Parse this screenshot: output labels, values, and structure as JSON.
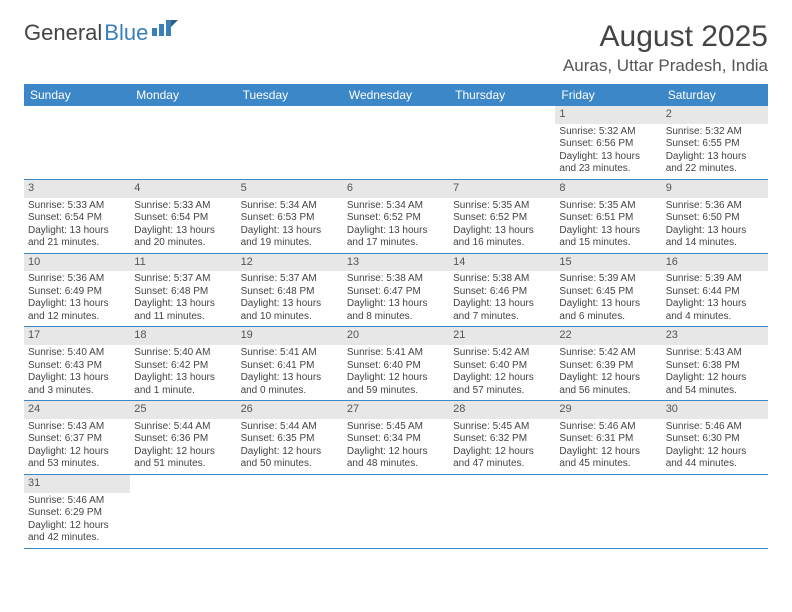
{
  "logo": {
    "text1": "General",
    "text2": "Blue"
  },
  "title": {
    "month": "August 2025",
    "location": "Auras, Uttar Pradesh, India"
  },
  "colors": {
    "header_bg": "#3b87c8",
    "header_text": "#ffffff",
    "daynum_bg": "#e7e7e7",
    "row_border": "#3b87c8",
    "text": "#444444",
    "logo_blue": "#3b7fb8"
  },
  "dayNames": [
    "Sunday",
    "Monday",
    "Tuesday",
    "Wednesday",
    "Thursday",
    "Friday",
    "Saturday"
  ],
  "weeks": [
    [
      null,
      null,
      null,
      null,
      null,
      {
        "n": "1",
        "sr": "Sunrise: 5:32 AM",
        "ss": "Sunset: 6:56 PM",
        "d1": "Daylight: 13 hours",
        "d2": "and 23 minutes."
      },
      {
        "n": "2",
        "sr": "Sunrise: 5:32 AM",
        "ss": "Sunset: 6:55 PM",
        "d1": "Daylight: 13 hours",
        "d2": "and 22 minutes."
      }
    ],
    [
      {
        "n": "3",
        "sr": "Sunrise: 5:33 AM",
        "ss": "Sunset: 6:54 PM",
        "d1": "Daylight: 13 hours",
        "d2": "and 21 minutes."
      },
      {
        "n": "4",
        "sr": "Sunrise: 5:33 AM",
        "ss": "Sunset: 6:54 PM",
        "d1": "Daylight: 13 hours",
        "d2": "and 20 minutes."
      },
      {
        "n": "5",
        "sr": "Sunrise: 5:34 AM",
        "ss": "Sunset: 6:53 PM",
        "d1": "Daylight: 13 hours",
        "d2": "and 19 minutes."
      },
      {
        "n": "6",
        "sr": "Sunrise: 5:34 AM",
        "ss": "Sunset: 6:52 PM",
        "d1": "Daylight: 13 hours",
        "d2": "and 17 minutes."
      },
      {
        "n": "7",
        "sr": "Sunrise: 5:35 AM",
        "ss": "Sunset: 6:52 PM",
        "d1": "Daylight: 13 hours",
        "d2": "and 16 minutes."
      },
      {
        "n": "8",
        "sr": "Sunrise: 5:35 AM",
        "ss": "Sunset: 6:51 PM",
        "d1": "Daylight: 13 hours",
        "d2": "and 15 minutes."
      },
      {
        "n": "9",
        "sr": "Sunrise: 5:36 AM",
        "ss": "Sunset: 6:50 PM",
        "d1": "Daylight: 13 hours",
        "d2": "and 14 minutes."
      }
    ],
    [
      {
        "n": "10",
        "sr": "Sunrise: 5:36 AM",
        "ss": "Sunset: 6:49 PM",
        "d1": "Daylight: 13 hours",
        "d2": "and 12 minutes."
      },
      {
        "n": "11",
        "sr": "Sunrise: 5:37 AM",
        "ss": "Sunset: 6:48 PM",
        "d1": "Daylight: 13 hours",
        "d2": "and 11 minutes."
      },
      {
        "n": "12",
        "sr": "Sunrise: 5:37 AM",
        "ss": "Sunset: 6:48 PM",
        "d1": "Daylight: 13 hours",
        "d2": "and 10 minutes."
      },
      {
        "n": "13",
        "sr": "Sunrise: 5:38 AM",
        "ss": "Sunset: 6:47 PM",
        "d1": "Daylight: 13 hours",
        "d2": "and 8 minutes."
      },
      {
        "n": "14",
        "sr": "Sunrise: 5:38 AM",
        "ss": "Sunset: 6:46 PM",
        "d1": "Daylight: 13 hours",
        "d2": "and 7 minutes."
      },
      {
        "n": "15",
        "sr": "Sunrise: 5:39 AM",
        "ss": "Sunset: 6:45 PM",
        "d1": "Daylight: 13 hours",
        "d2": "and 6 minutes."
      },
      {
        "n": "16",
        "sr": "Sunrise: 5:39 AM",
        "ss": "Sunset: 6:44 PM",
        "d1": "Daylight: 13 hours",
        "d2": "and 4 minutes."
      }
    ],
    [
      {
        "n": "17",
        "sr": "Sunrise: 5:40 AM",
        "ss": "Sunset: 6:43 PM",
        "d1": "Daylight: 13 hours",
        "d2": "and 3 minutes."
      },
      {
        "n": "18",
        "sr": "Sunrise: 5:40 AM",
        "ss": "Sunset: 6:42 PM",
        "d1": "Daylight: 13 hours",
        "d2": "and 1 minute."
      },
      {
        "n": "19",
        "sr": "Sunrise: 5:41 AM",
        "ss": "Sunset: 6:41 PM",
        "d1": "Daylight: 13 hours",
        "d2": "and 0 minutes."
      },
      {
        "n": "20",
        "sr": "Sunrise: 5:41 AM",
        "ss": "Sunset: 6:40 PM",
        "d1": "Daylight: 12 hours",
        "d2": "and 59 minutes."
      },
      {
        "n": "21",
        "sr": "Sunrise: 5:42 AM",
        "ss": "Sunset: 6:40 PM",
        "d1": "Daylight: 12 hours",
        "d2": "and 57 minutes."
      },
      {
        "n": "22",
        "sr": "Sunrise: 5:42 AM",
        "ss": "Sunset: 6:39 PM",
        "d1": "Daylight: 12 hours",
        "d2": "and 56 minutes."
      },
      {
        "n": "23",
        "sr": "Sunrise: 5:43 AM",
        "ss": "Sunset: 6:38 PM",
        "d1": "Daylight: 12 hours",
        "d2": "and 54 minutes."
      }
    ],
    [
      {
        "n": "24",
        "sr": "Sunrise: 5:43 AM",
        "ss": "Sunset: 6:37 PM",
        "d1": "Daylight: 12 hours",
        "d2": "and 53 minutes."
      },
      {
        "n": "25",
        "sr": "Sunrise: 5:44 AM",
        "ss": "Sunset: 6:36 PM",
        "d1": "Daylight: 12 hours",
        "d2": "and 51 minutes."
      },
      {
        "n": "26",
        "sr": "Sunrise: 5:44 AM",
        "ss": "Sunset: 6:35 PM",
        "d1": "Daylight: 12 hours",
        "d2": "and 50 minutes."
      },
      {
        "n": "27",
        "sr": "Sunrise: 5:45 AM",
        "ss": "Sunset: 6:34 PM",
        "d1": "Daylight: 12 hours",
        "d2": "and 48 minutes."
      },
      {
        "n": "28",
        "sr": "Sunrise: 5:45 AM",
        "ss": "Sunset: 6:32 PM",
        "d1": "Daylight: 12 hours",
        "d2": "and 47 minutes."
      },
      {
        "n": "29",
        "sr": "Sunrise: 5:46 AM",
        "ss": "Sunset: 6:31 PM",
        "d1": "Daylight: 12 hours",
        "d2": "and 45 minutes."
      },
      {
        "n": "30",
        "sr": "Sunrise: 5:46 AM",
        "ss": "Sunset: 6:30 PM",
        "d1": "Daylight: 12 hours",
        "d2": "and 44 minutes."
      }
    ],
    [
      {
        "n": "31",
        "sr": "Sunrise: 5:46 AM",
        "ss": "Sunset: 6:29 PM",
        "d1": "Daylight: 12 hours",
        "d2": "and 42 minutes."
      },
      null,
      null,
      null,
      null,
      null,
      null
    ]
  ]
}
